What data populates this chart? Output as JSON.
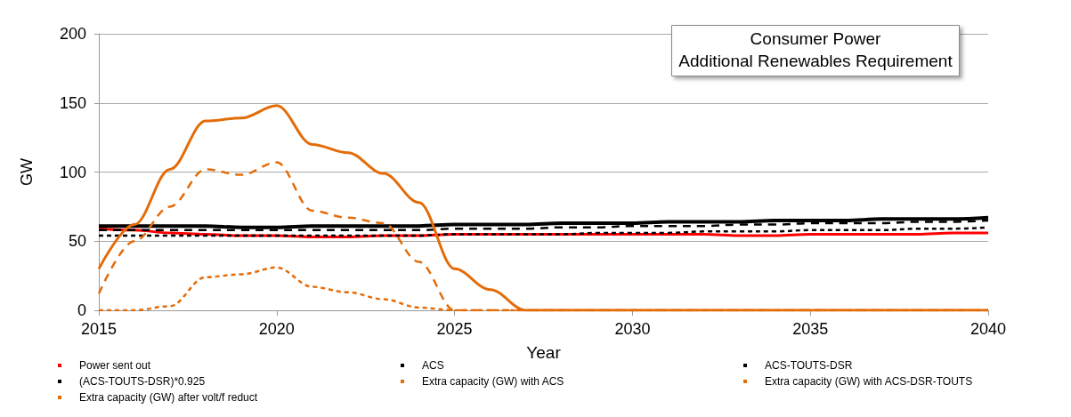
{
  "chart_data": {
    "type": "line",
    "title": "Consumer Power",
    "subtitle": "Additional Renewables Requirement",
    "xlabel": "Year",
    "ylabel": "GW",
    "x": [
      2015,
      2016,
      2017,
      2018,
      2019,
      2020,
      2021,
      2022,
      2023,
      2024,
      2025,
      2026,
      2027,
      2028,
      2029,
      2030,
      2031,
      2032,
      2033,
      2034,
      2035,
      2036,
      2037,
      2038,
      2039,
      2040
    ],
    "xlim": [
      2015,
      2040
    ],
    "xticks": [
      2015,
      2020,
      2025,
      2030,
      2035,
      2040
    ],
    "ylim": [
      0,
      200
    ],
    "yticks": [
      0,
      50,
      100,
      150,
      200
    ],
    "grid": "y",
    "legend": "bottom",
    "marker": "none",
    "series": [
      {
        "name": "Power sent out",
        "color": "#ff0000",
        "line_style": "solid",
        "values": [
          59,
          58,
          56,
          55,
          54,
          54,
          53,
          53,
          54,
          54,
          55,
          55,
          55,
          55,
          55,
          55,
          55,
          55,
          54,
          54,
          55,
          55,
          55,
          55,
          56,
          56
        ]
      },
      {
        "name": "ACS",
        "color": "#000000",
        "line_style": "solid",
        "values": [
          61,
          61,
          61,
          61,
          60,
          60,
          61,
          61,
          61,
          61,
          62,
          62,
          62,
          63,
          63,
          63,
          64,
          64,
          64,
          65,
          65,
          65,
          66,
          66,
          66,
          67
        ]
      },
      {
        "name": "ACS-TOUTS-DSR",
        "color": "#000000",
        "line_style": "dashed",
        "values": [
          58,
          58,
          58,
          58,
          58,
          58,
          58,
          58,
          58,
          58,
          59,
          59,
          59,
          60,
          60,
          61,
          61,
          61,
          62,
          62,
          63,
          63,
          63,
          64,
          64,
          65
        ]
      },
      {
        "name": "(ACS-TOUTS-DSR)*0.925",
        "color": "#000000",
        "line_style": "dotted",
        "values": [
          54,
          54,
          54,
          54,
          54,
          54,
          54,
          54,
          54,
          54,
          55,
          55,
          55,
          55,
          56,
          56,
          56,
          57,
          57,
          57,
          58,
          58,
          58,
          59,
          59,
          60
        ]
      },
      {
        "name": "Extra capacity (GW) with ACS",
        "color": "#e36c09",
        "line_style": "solid",
        "values": [
          30,
          62,
          102,
          137,
          139,
          148,
          120,
          114,
          99,
          78,
          30,
          15,
          0,
          0,
          0,
          0,
          0,
          0,
          0,
          0,
          0,
          0,
          0,
          0,
          0,
          0
        ]
      },
      {
        "name": "Extra capacity (GW) with ACS-DSR-TOUTS",
        "color": "#e36c09",
        "line_style": "dashed",
        "values": [
          12,
          50,
          75,
          102,
          98,
          107,
          72,
          67,
          63,
          35,
          0,
          0,
          0,
          0,
          0,
          0,
          0,
          0,
          0,
          0,
          0,
          0,
          0,
          0,
          0,
          0
        ]
      },
      {
        "name": "Extra capacity (GW) after volt/f reduct",
        "color": "#e36c09",
        "line_style": "dotted",
        "values": [
          0,
          0,
          3,
          24,
          26,
          31,
          17,
          13,
          8,
          2,
          0,
          0,
          0,
          0,
          0,
          0,
          0,
          0,
          0,
          0,
          0,
          0,
          0,
          0,
          0,
          0
        ]
      }
    ]
  }
}
